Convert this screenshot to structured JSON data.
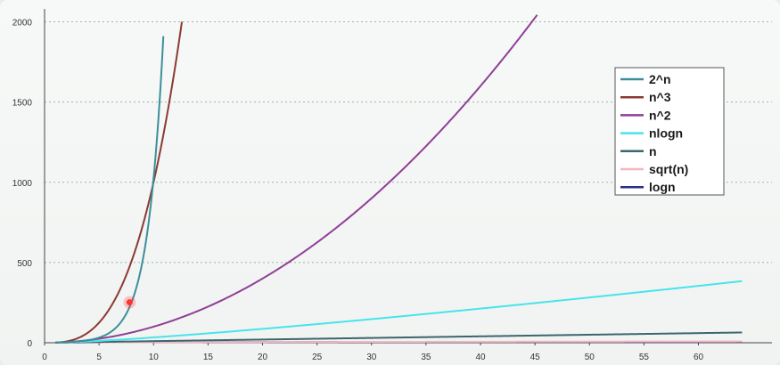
{
  "chart_data": {
    "type": "line",
    "title": "",
    "xlabel": "",
    "ylabel": "",
    "xlim": [
      0,
      65
    ],
    "ylim": [
      0,
      2050
    ],
    "x_ticks": [
      0,
      5,
      10,
      15,
      20,
      25,
      30,
      35,
      40,
      45,
      50,
      55,
      60
    ],
    "y_ticks": [
      0,
      500,
      1000,
      1500,
      2000
    ],
    "grid": "horizontal dashed",
    "legend_placement": "right",
    "series": [
      {
        "name": "2^n",
        "color": "#3c8f9a",
        "function": "2^n",
        "x_max": 10.9
      },
      {
        "name": "n^3",
        "color": "#8b3a32",
        "function": "n^3",
        "x_max": 12.6
      },
      {
        "name": "n^2",
        "color": "#8f3f95",
        "function": "n^2",
        "x_max": 45.2
      },
      {
        "name": "nlogn",
        "color": "#47e4ec",
        "function": "n*log2(n)",
        "x_max": 64
      },
      {
        "name": "n",
        "color": "#3c6670",
        "function": "n",
        "x_max": 64
      },
      {
        "name": "sqrt(n)",
        "color": "#f2b8c0",
        "function": "sqrt(n)",
        "x_max": 64
      },
      {
        "name": "logn",
        "color": "#2a2f8a",
        "function": "log2(n)",
        "x_max": 64
      }
    ],
    "annotations": [
      {
        "type": "marker",
        "color": "#ff3333",
        "x": 7.8,
        "y": 252
      }
    ]
  }
}
